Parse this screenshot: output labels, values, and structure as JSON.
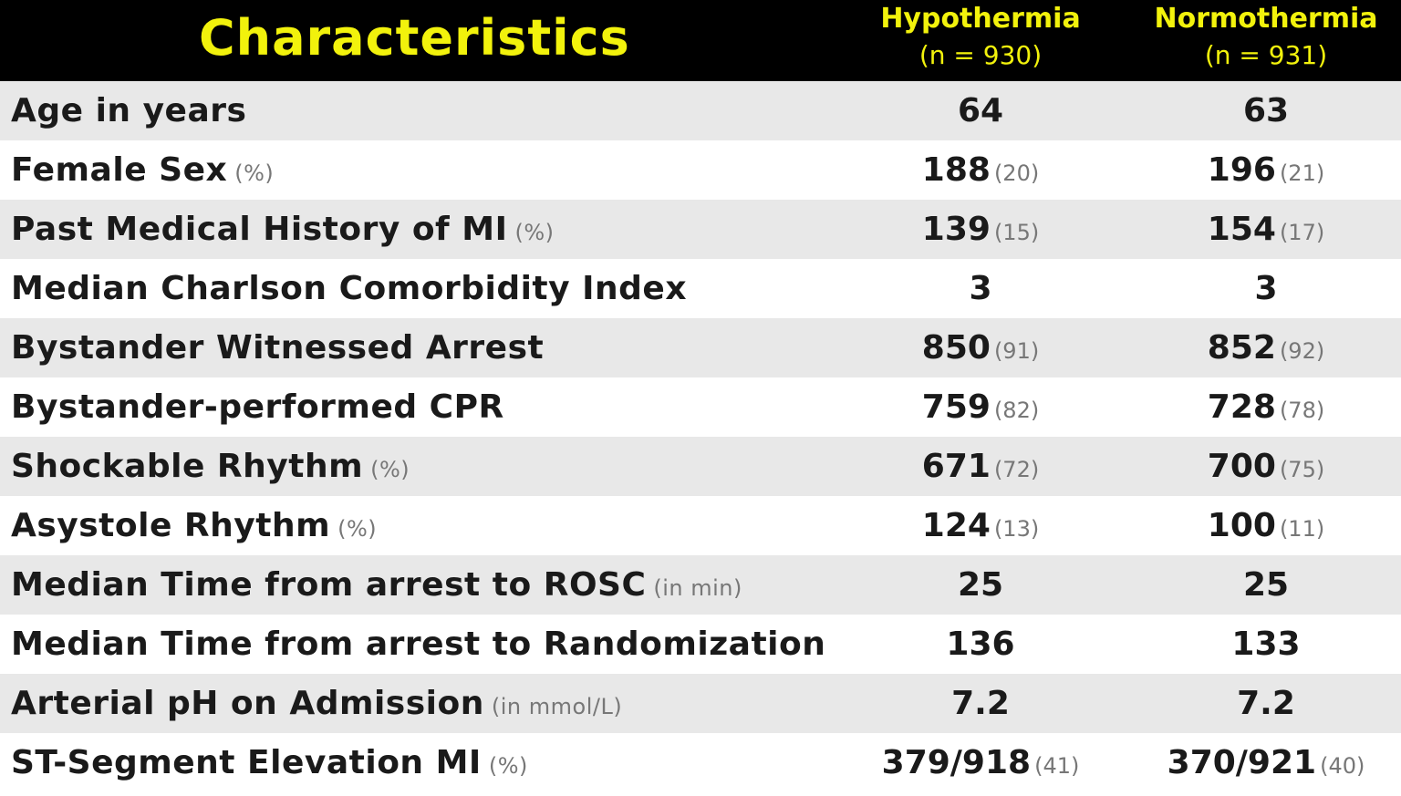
{
  "header": {
    "characteristics": "Characteristics",
    "hypothermia": "Hypothermia",
    "hypothermia_n": "(n = 930)",
    "normothermia": "Normothermia",
    "normothermia_n": "(n = 931)"
  },
  "rows": [
    {
      "label": "Age in years",
      "unit": "",
      "hypo": "64",
      "hypo_pct": "",
      "normo": "63",
      "normo_pct": ""
    },
    {
      "label": "Female Sex",
      "unit": "(%)",
      "hypo": "188",
      "hypo_pct": "(20)",
      "normo": "196",
      "normo_pct": "(21)"
    },
    {
      "label": "Past Medical History of MI",
      "unit": "(%)",
      "hypo": "139",
      "hypo_pct": "(15)",
      "normo": "154",
      "normo_pct": "(17)"
    },
    {
      "label": "Median Charlson Comorbidity Index",
      "unit": "",
      "hypo": "3",
      "hypo_pct": "",
      "normo": "3",
      "normo_pct": ""
    },
    {
      "label": "Bystander Witnessed Arrest",
      "unit": "",
      "hypo": "850",
      "hypo_pct": "(91)",
      "normo": "852",
      "normo_pct": "(92)"
    },
    {
      "label": "Bystander-performed CPR",
      "unit": "",
      "hypo": "759",
      "hypo_pct": "(82)",
      "normo": "728",
      "normo_pct": "(78)"
    },
    {
      "label": "Shockable Rhythm",
      "unit": "(%)",
      "hypo": "671",
      "hypo_pct": "(72)",
      "normo": "700",
      "normo_pct": "(75)"
    },
    {
      "label": "Asystole Rhythm",
      "unit": "(%)",
      "hypo": "124",
      "hypo_pct": "(13)",
      "normo": "100",
      "normo_pct": "(11)"
    },
    {
      "label": "Median Time from arrest to ROSC",
      "unit": "(in min)",
      "hypo": "25",
      "hypo_pct": "",
      "normo": "25",
      "normo_pct": ""
    },
    {
      "label": "Median Time from arrest to Randomization",
      "unit": "",
      "hypo": "136",
      "hypo_pct": "",
      "normo": "133",
      "normo_pct": ""
    },
    {
      "label": "Arterial pH on Admission",
      "unit": "(in mmol/L)",
      "hypo": "7.2",
      "hypo_pct": "",
      "normo": "7.2",
      "normo_pct": ""
    },
    {
      "label": "ST-Segment Elevation MI",
      "unit": "(%)",
      "hypo": "379/918",
      "hypo_pct": "(41)",
      "normo": "370/921",
      "normo_pct": "(40)"
    }
  ],
  "chart_data": {
    "type": "table",
    "columns": [
      "Characteristics",
      "Hypothermia (n = 930)",
      "Normothermia (n = 931)"
    ],
    "rows": [
      [
        "Age in years",
        "64",
        "63"
      ],
      [
        "Female Sex (%)",
        "188 (20)",
        "196 (21)"
      ],
      [
        "Past Medical History of MI (%)",
        "139 (15)",
        "154 (17)"
      ],
      [
        "Median Charlson Comorbidity Index",
        "3",
        "3"
      ],
      [
        "Bystander Witnessed Arrest",
        "850 (91)",
        "852 (92)"
      ],
      [
        "Bystander-performed CPR",
        "759 (82)",
        "728 (78)"
      ],
      [
        "Shockable Rhythm (%)",
        "671 (72)",
        "700 (75)"
      ],
      [
        "Asystole Rhythm (%)",
        "124 (13)",
        "100 (11)"
      ],
      [
        "Median Time from arrest to ROSC (in min)",
        "25",
        "25"
      ],
      [
        "Median Time from arrest to Randomization",
        "136",
        "133"
      ],
      [
        "Arterial pH on Admission (in mmol/L)",
        "7.2",
        "7.2"
      ],
      [
        "ST-Segment Elevation MI (%)",
        "379/918 (41)",
        "370/921 (40)"
      ]
    ]
  },
  "colors": {
    "header_bg": "#000000",
    "header_text": "#f2f20c",
    "row_shaded": "#e8e8e8",
    "row_plain": "#ffffff",
    "text": "#1a1a1a",
    "secondary_text": "#777777"
  }
}
